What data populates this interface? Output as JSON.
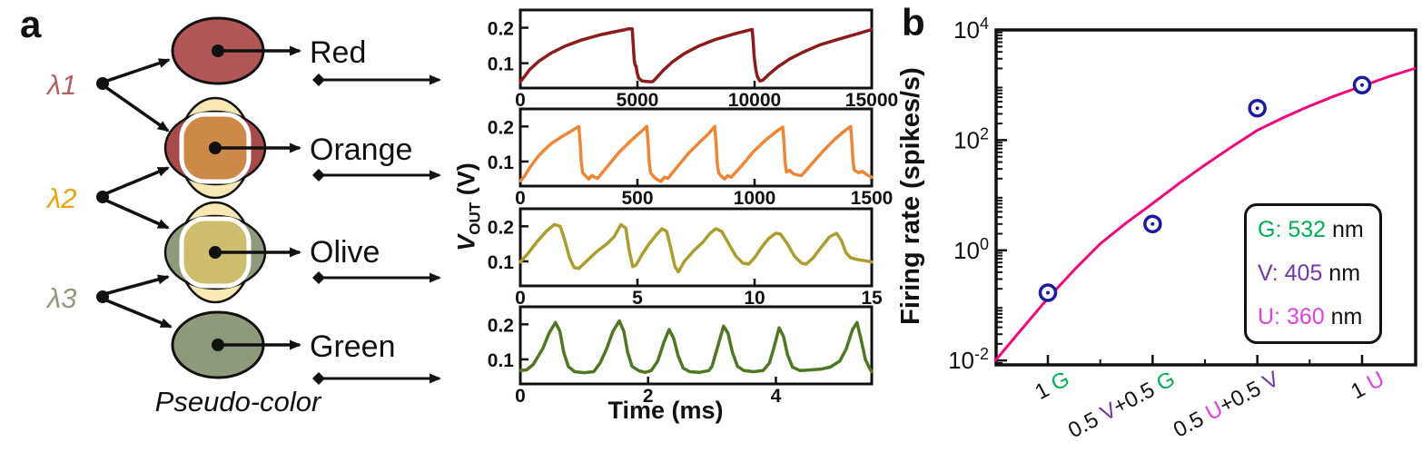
{
  "palette": {
    "ink": "#111111",
    "white": "#ffffff",
    "red_ellipse": "#b25757",
    "red_dark": "#a84a4a",
    "cream": "#f7e8b4",
    "orange_square": "#cd8948",
    "sage": "#8e9a7c",
    "khaki": "#cdbd6e",
    "curve_red": "#8c1c1c",
    "curve_orange": "#ee8636",
    "curve_olive": "#ad9d2d",
    "curve_green": "#4e7722",
    "fit_magenta": "#f2067e",
    "marker_navy": "#1b1b9e",
    "legend_green": "#00b050",
    "legend_violet": "#7434ac",
    "legend_magenta": "#e23fe2"
  },
  "panel_a": {
    "label": "a",
    "pseudo_color_caption": "Pseudo-color",
    "wavelengths": [
      {
        "label": "λ1",
        "color": "#b86060"
      },
      {
        "label": "λ2",
        "color": "#e7a60a"
      },
      {
        "label": "λ3",
        "color": "#8e9a7c"
      }
    ],
    "color_names": [
      "Red",
      "Orange",
      "Olive",
      "Green"
    ],
    "vout_label": {
      "v": "V",
      "sub": "OUT",
      "unit": " (V)"
    },
    "time_axis_label": "Time (ms)"
  },
  "panel_b": {
    "label": "b",
    "legend": [
      {
        "label": "G: 532",
        "unit": " nm",
        "color": "#00b050"
      },
      {
        "label": "V: 405",
        "unit": " nm",
        "color": "#7434ac"
      },
      {
        "label": "U: 360",
        "unit": " nm",
        "color": "#e23fe2"
      }
    ]
  },
  "chart_data": [
    {
      "type": "line",
      "name": "red-cell-vout",
      "color": "#8c1c1c",
      "xlim": [
        0,
        15000
      ],
      "ylim": [
        0.03,
        0.25
      ],
      "xticks": [
        {
          "v": 0,
          "l": "0"
        },
        {
          "v": 5000,
          "l": "5000"
        },
        {
          "v": 10000,
          "l": "10000"
        },
        {
          "v": 15000,
          "l": "15000"
        }
      ],
      "yticks": [
        {
          "v": 0.1,
          "l": "0.1"
        },
        {
          "v": 0.2,
          "l": "0.2"
        }
      ],
      "points": [
        [
          0,
          0.048
        ],
        [
          150,
          0.06
        ],
        [
          400,
          0.082
        ],
        [
          800,
          0.106
        ],
        [
          1300,
          0.128
        ],
        [
          1900,
          0.148
        ],
        [
          2600,
          0.165
        ],
        [
          3400,
          0.18
        ],
        [
          4200,
          0.191
        ],
        [
          4650,
          0.197
        ],
        [
          4780,
          0.197
        ],
        [
          4820,
          0.15
        ],
        [
          4860,
          0.11
        ],
        [
          4900,
          0.095
        ],
        [
          4940,
          0.092
        ],
        [
          4980,
          0.075
        ],
        [
          5050,
          0.058
        ],
        [
          5200,
          0.05
        ],
        [
          5500,
          0.048
        ],
        [
          5650,
          0.048
        ],
        [
          5800,
          0.058
        ],
        [
          6100,
          0.08
        ],
        [
          6500,
          0.104
        ],
        [
          7000,
          0.127
        ],
        [
          7600,
          0.148
        ],
        [
          8300,
          0.166
        ],
        [
          9100,
          0.182
        ],
        [
          9750,
          0.193
        ],
        [
          9900,
          0.195
        ],
        [
          9940,
          0.16
        ],
        [
          9980,
          0.12
        ],
        [
          10020,
          0.098
        ],
        [
          10060,
          0.08
        ],
        [
          10120,
          0.062
        ],
        [
          10220,
          0.05
        ],
        [
          10350,
          0.052
        ],
        [
          10600,
          0.068
        ],
        [
          11000,
          0.09
        ],
        [
          11500,
          0.112
        ],
        [
          12100,
          0.132
        ],
        [
          12800,
          0.152
        ],
        [
          13600,
          0.168
        ],
        [
          14400,
          0.183
        ],
        [
          15000,
          0.195
        ]
      ]
    },
    {
      "type": "line",
      "name": "orange-cell-vout",
      "color": "#ee8636",
      "xlim": [
        0,
        1500
      ],
      "ylim": [
        0.03,
        0.25
      ],
      "xticks": [
        {
          "v": 0,
          "l": "0"
        },
        {
          "v": 500,
          "l": "500"
        },
        {
          "v": 1000,
          "l": "1000"
        },
        {
          "v": 1500,
          "l": "1500"
        }
      ],
      "yticks": [
        {
          "v": 0.1,
          "l": "0.1"
        },
        {
          "v": 0.2,
          "l": "0.2"
        }
      ],
      "points": [
        [
          0,
          0.045
        ],
        [
          15,
          0.055
        ],
        [
          40,
          0.082
        ],
        [
          80,
          0.118
        ],
        [
          130,
          0.15
        ],
        [
          180,
          0.172
        ],
        [
          220,
          0.188
        ],
        [
          250,
          0.2
        ],
        [
          256,
          0.15
        ],
        [
          260,
          0.1
        ],
        [
          266,
          0.068
        ],
        [
          280,
          0.058
        ],
        [
          292,
          0.05
        ],
        [
          305,
          0.06
        ],
        [
          318,
          0.055
        ],
        [
          330,
          0.052
        ],
        [
          370,
          0.085
        ],
        [
          420,
          0.125
        ],
        [
          470,
          0.158
        ],
        [
          510,
          0.182
        ],
        [
          540,
          0.2
        ],
        [
          546,
          0.148
        ],
        [
          550,
          0.1
        ],
        [
          556,
          0.068
        ],
        [
          570,
          0.056
        ],
        [
          585,
          0.048
        ],
        [
          600,
          0.043
        ],
        [
          615,
          0.055
        ],
        [
          630,
          0.052
        ],
        [
          670,
          0.085
        ],
        [
          720,
          0.125
        ],
        [
          770,
          0.158
        ],
        [
          805,
          0.18
        ],
        [
          830,
          0.2
        ],
        [
          836,
          0.15
        ],
        [
          840,
          0.1
        ],
        [
          846,
          0.068
        ],
        [
          858,
          0.058
        ],
        [
          872,
          0.05
        ],
        [
          885,
          0.06
        ],
        [
          900,
          0.055
        ],
        [
          945,
          0.088
        ],
        [
          995,
          0.128
        ],
        [
          1045,
          0.16
        ],
        [
          1090,
          0.184
        ],
        [
          1120,
          0.198
        ],
        [
          1126,
          0.15
        ],
        [
          1130,
          0.1
        ],
        [
          1136,
          0.07
        ],
        [
          1150,
          0.075
        ],
        [
          1165,
          0.065
        ],
        [
          1180,
          0.062
        ],
        [
          1200,
          0.06
        ],
        [
          1240,
          0.09
        ],
        [
          1290,
          0.128
        ],
        [
          1340,
          0.162
        ],
        [
          1385,
          0.188
        ],
        [
          1410,
          0.2
        ],
        [
          1416,
          0.15
        ],
        [
          1420,
          0.1
        ],
        [
          1426,
          0.075
        ],
        [
          1445,
          0.068
        ],
        [
          1460,
          0.072
        ],
        [
          1480,
          0.062
        ],
        [
          1500,
          0.055
        ]
      ]
    },
    {
      "type": "line",
      "name": "olive-cell-vout",
      "color": "#ad9d2d",
      "xlim": [
        0,
        15
      ],
      "ylim": [
        0.03,
        0.25
      ],
      "xticks": [
        {
          "v": 0,
          "l": "0"
        },
        {
          "v": 5,
          "l": "5"
        },
        {
          "v": 10,
          "l": "10"
        },
        {
          "v": 15,
          "l": "15"
        }
      ],
      "yticks": [
        {
          "v": 0.1,
          "l": "0.1"
        },
        {
          "v": 0.2,
          "l": "0.2"
        }
      ],
      "points": [
        [
          0,
          0.098
        ],
        [
          0.3,
          0.12
        ],
        [
          0.7,
          0.155
        ],
        [
          1.1,
          0.185
        ],
        [
          1.45,
          0.205
        ],
        [
          1.7,
          0.2
        ],
        [
          1.9,
          0.16
        ],
        [
          2.1,
          0.11
        ],
        [
          2.3,
          0.082
        ],
        [
          2.5,
          0.08
        ],
        [
          2.9,
          0.105
        ],
        [
          3.3,
          0.13
        ],
        [
          3.7,
          0.15
        ],
        [
          4.0,
          0.17
        ],
        [
          4.3,
          0.205
        ],
        [
          4.5,
          0.195
        ],
        [
          4.65,
          0.13
        ],
        [
          4.8,
          0.085
        ],
        [
          4.95,
          0.09
        ],
        [
          5.2,
          0.12
        ],
        [
          5.5,
          0.15
        ],
        [
          5.8,
          0.175
        ],
        [
          6.05,
          0.193
        ],
        [
          6.25,
          0.185
        ],
        [
          6.45,
          0.13
        ],
        [
          6.6,
          0.085
        ],
        [
          6.75,
          0.07
        ],
        [
          7.0,
          0.1
        ],
        [
          7.4,
          0.13
        ],
        [
          7.8,
          0.155
        ],
        [
          8.1,
          0.18
        ],
        [
          8.35,
          0.193
        ],
        [
          8.6,
          0.185
        ],
        [
          8.9,
          0.15
        ],
        [
          9.2,
          0.115
        ],
        [
          9.5,
          0.095
        ],
        [
          9.75,
          0.092
        ],
        [
          10.0,
          0.11
        ],
        [
          10.3,
          0.14
        ],
        [
          10.6,
          0.165
        ],
        [
          10.9,
          0.18
        ],
        [
          11.1,
          0.178
        ],
        [
          11.4,
          0.15
        ],
        [
          11.7,
          0.115
        ],
        [
          12.0,
          0.095
        ],
        [
          12.2,
          0.092
        ],
        [
          12.5,
          0.11
        ],
        [
          12.9,
          0.145
        ],
        [
          13.2,
          0.17
        ],
        [
          13.5,
          0.18
        ],
        [
          13.7,
          0.16
        ],
        [
          13.9,
          0.125
        ],
        [
          14.1,
          0.11
        ],
        [
          14.4,
          0.105
        ],
        [
          14.7,
          0.102
        ],
        [
          15,
          0.098
        ]
      ]
    },
    {
      "type": "line",
      "name": "green-cell-vout",
      "color": "#4e7722",
      "xlim": [
        0,
        5.5
      ],
      "ylim": [
        0.03,
        0.25
      ],
      "xticks": [
        {
          "v": 0,
          "l": "0"
        },
        {
          "v": 2,
          "l": "2"
        },
        {
          "v": 4,
          "l": "4"
        }
      ],
      "yticks": [
        {
          "v": 0.1,
          "l": "0.1"
        },
        {
          "v": 0.2,
          "l": "0.2"
        }
      ],
      "points": [
        [
          0,
          0.068
        ],
        [
          0.1,
          0.07
        ],
        [
          0.2,
          0.085
        ],
        [
          0.35,
          0.13
        ],
        [
          0.45,
          0.175
        ],
        [
          0.55,
          0.205
        ],
        [
          0.62,
          0.18
        ],
        [
          0.68,
          0.12
        ],
        [
          0.75,
          0.08
        ],
        [
          0.85,
          0.065
        ],
        [
          1.0,
          0.062
        ],
        [
          1.15,
          0.065
        ],
        [
          1.25,
          0.09
        ],
        [
          1.35,
          0.13
        ],
        [
          1.45,
          0.18
        ],
        [
          1.55,
          0.21
        ],
        [
          1.62,
          0.18
        ],
        [
          1.68,
          0.12
        ],
        [
          1.75,
          0.08
        ],
        [
          1.85,
          0.068
        ],
        [
          1.95,
          0.063
        ],
        [
          2.05,
          0.068
        ],
        [
          2.15,
          0.095
        ],
        [
          2.25,
          0.15
        ],
        [
          2.33,
          0.185
        ],
        [
          2.4,
          0.16
        ],
        [
          2.47,
          0.11
        ],
        [
          2.55,
          0.075
        ],
        [
          2.65,
          0.065
        ],
        [
          2.8,
          0.063
        ],
        [
          2.95,
          0.068
        ],
        [
          3.0,
          0.08
        ],
        [
          3.08,
          0.13
        ],
        [
          3.18,
          0.195
        ],
        [
          3.25,
          0.175
        ],
        [
          3.32,
          0.12
        ],
        [
          3.4,
          0.08
        ],
        [
          3.5,
          0.068
        ],
        [
          3.65,
          0.065
        ],
        [
          3.8,
          0.068
        ],
        [
          3.9,
          0.09
        ],
        [
          3.98,
          0.14
        ],
        [
          4.05,
          0.19
        ],
        [
          4.12,
          0.165
        ],
        [
          4.18,
          0.115
        ],
        [
          4.26,
          0.078
        ],
        [
          4.38,
          0.068
        ],
        [
          4.55,
          0.07
        ],
        [
          4.7,
          0.072
        ],
        [
          4.85,
          0.078
        ],
        [
          5.0,
          0.095
        ],
        [
          5.1,
          0.13
        ],
        [
          5.2,
          0.185
        ],
        [
          5.27,
          0.205
        ],
        [
          5.33,
          0.16
        ],
        [
          5.4,
          0.1
        ],
        [
          5.48,
          0.07
        ],
        [
          5.5,
          0.065
        ]
      ]
    },
    {
      "type": "scatter",
      "name": "firing-rate-vs-input",
      "ylabel": "Firing rate (spikes/s)",
      "yscale": "log",
      "ylog_range": [
        -2.08,
        4
      ],
      "ytick_exponents": [
        "4",
        "2",
        "0",
        "-2"
      ],
      "marker_color": "#1b1b9e",
      "fit_color": "#f2067e",
      "categories": [
        {
          "segments": [
            {
              "t": "1 ",
              "c": "#111111"
            },
            {
              "t": "G",
              "c": "#00b050"
            }
          ]
        },
        {
          "segments": [
            {
              "t": "0.5 ",
              "c": "#111111"
            },
            {
              "t": "V",
              "c": "#7434ac"
            },
            {
              "t": "+0.5 ",
              "c": "#111111"
            },
            {
              "t": "G",
              "c": "#00b050"
            }
          ]
        },
        {
          "segments": [
            {
              "t": "0.5 ",
              "c": "#111111"
            },
            {
              "t": "U",
              "c": "#e23fe2"
            },
            {
              "t": "+0.5 ",
              "c": "#111111"
            },
            {
              "t": "V",
              "c": "#7434ac"
            }
          ]
        },
        {
          "segments": [
            {
              "t": "1 ",
              "c": "#111111"
            },
            {
              "t": "U",
              "c": "#e23fe2"
            }
          ]
        }
      ],
      "values": [
        0.17,
        3,
        380,
        1000
      ],
      "fit_log10": [
        [
          0.5,
          -2.0
        ],
        [
          0.75,
          -1.43
        ],
        [
          1.0,
          -0.87
        ],
        [
          1.25,
          -0.36
        ],
        [
          1.5,
          0.12
        ],
        [
          1.75,
          0.5
        ],
        [
          2.0,
          0.85
        ],
        [
          2.25,
          1.21
        ],
        [
          2.5,
          1.55
        ],
        [
          2.75,
          1.87
        ],
        [
          3.0,
          2.18
        ],
        [
          3.25,
          2.41
        ],
        [
          3.5,
          2.62
        ],
        [
          3.75,
          2.81
        ],
        [
          4.0,
          2.98
        ],
        [
          4.25,
          3.15
        ],
        [
          4.5,
          3.3
        ]
      ]
    }
  ]
}
